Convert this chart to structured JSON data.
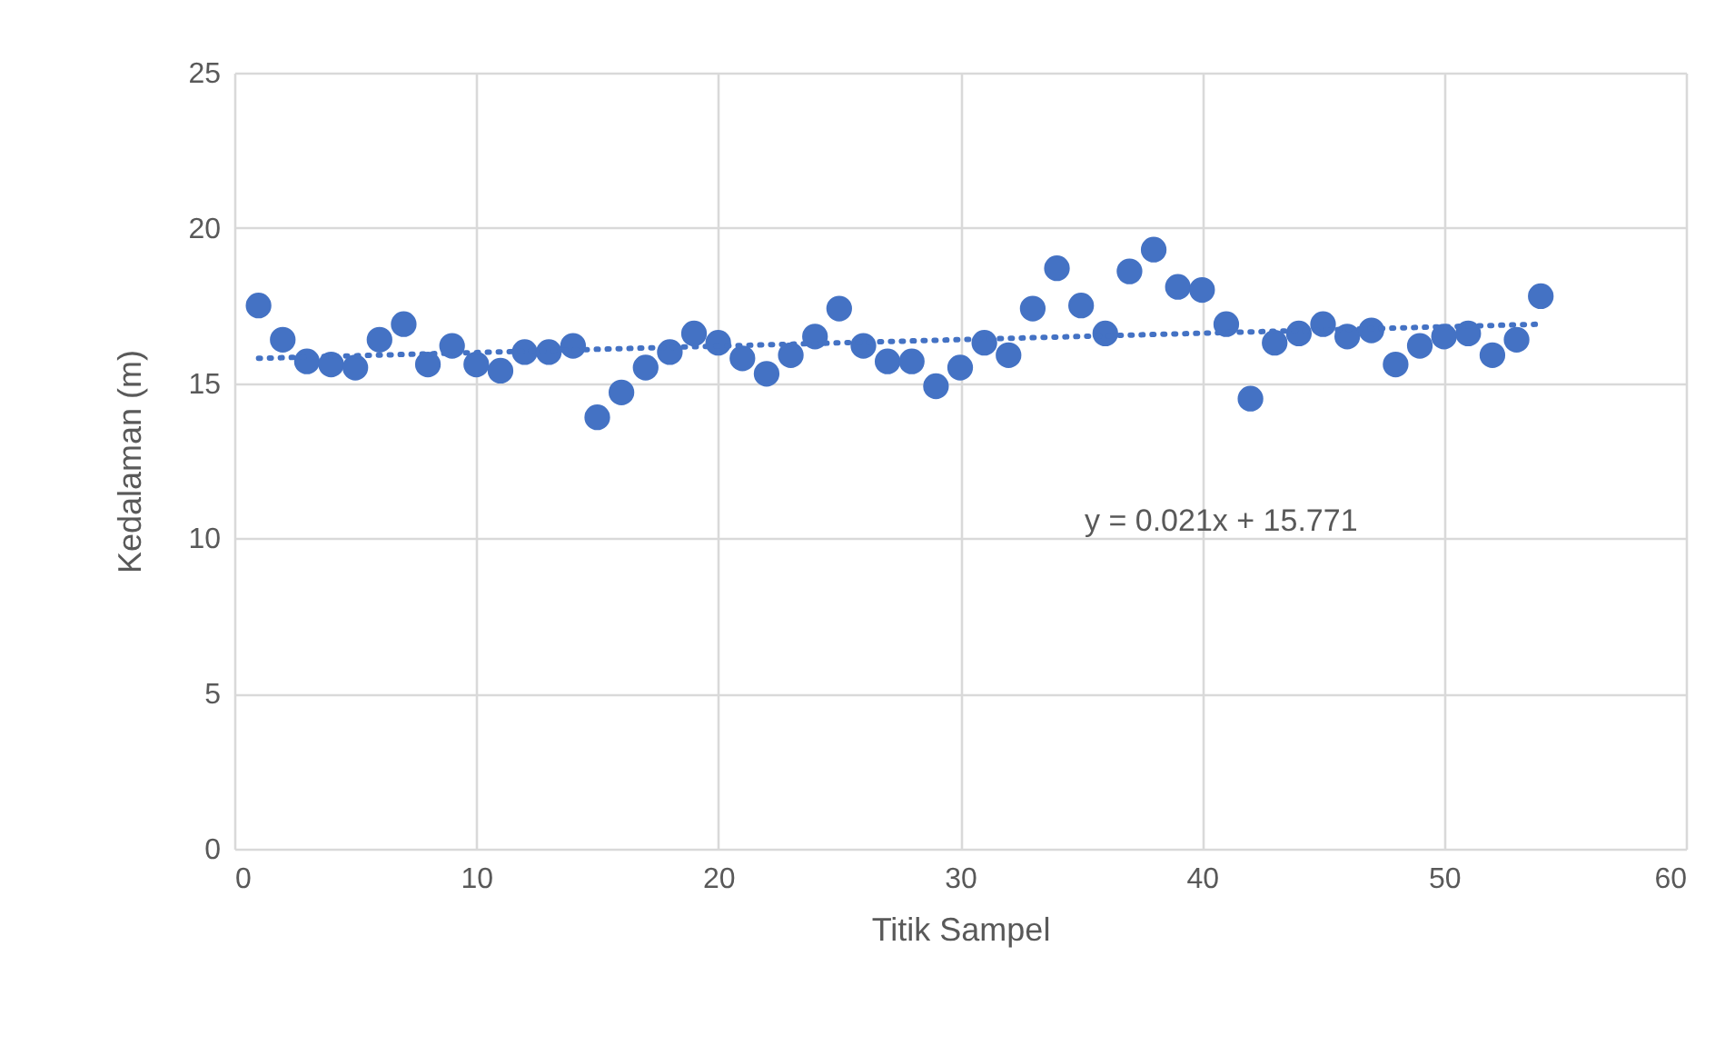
{
  "chart_data": {
    "type": "scatter",
    "xlabel": "Titik Sampel",
    "ylabel": "Kedalaman (m)",
    "xlim": [
      0,
      60
    ],
    "xticks": [
      0,
      10,
      20,
      30,
      40,
      50,
      60
    ],
    "ylim": [
      0,
      25
    ],
    "yticks": [
      0,
      5,
      10,
      15,
      20,
      25
    ],
    "grid": true,
    "marker": "circle",
    "line_style": "dotted",
    "annotations": [
      "y = 0.021x + 15.771"
    ],
    "series": [
      {
        "color": "#4472c4",
        "x": [
          1,
          2,
          3,
          4,
          5,
          6,
          7,
          8,
          9,
          10,
          11,
          12,
          13,
          14,
          15,
          16,
          17,
          18,
          19,
          20,
          21,
          22,
          23,
          24,
          25,
          26,
          27,
          28,
          29,
          30,
          31,
          32,
          33,
          34,
          35,
          36,
          37,
          38,
          39,
          40,
          41,
          42,
          43,
          44,
          45,
          46,
          47,
          48,
          49,
          50,
          51,
          52,
          53,
          54
        ],
        "values": [
          17.5,
          16.4,
          15.7,
          15.6,
          15.5,
          16.4,
          16.9,
          15.6,
          16.2,
          15.6,
          15.4,
          16.0,
          16.0,
          16.2,
          13.9,
          14.7,
          15.5,
          16.0,
          16.6,
          16.3,
          15.8,
          15.3,
          15.9,
          16.5,
          17.4,
          16.2,
          15.7,
          15.7,
          14.9,
          15.5,
          16.3,
          15.9,
          17.4,
          18.7,
          17.5,
          16.6,
          18.6,
          19.3,
          18.1,
          18.0,
          16.9,
          14.5,
          16.3,
          16.6,
          16.9,
          16.5,
          16.7,
          15.6,
          16.2,
          16.5,
          16.6,
          15.9,
          16.4,
          17.8
        ]
      },
      {
        "type": "line",
        "marker": "none",
        "color": "#4472c4",
        "x": [
          1,
          54
        ],
        "values": [
          15.8,
          16.9
        ]
      }
    ]
  }
}
